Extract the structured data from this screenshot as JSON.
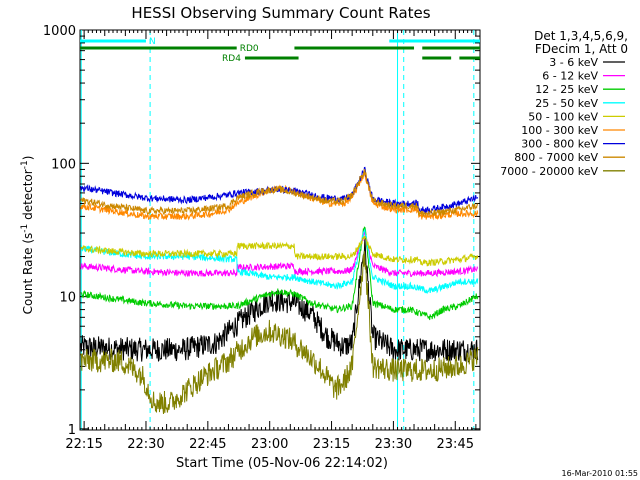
{
  "chart_data": {
    "type": "line",
    "title": "HESSI Observing Summary Count Rates",
    "xlabel": "Start Time (05-Nov-06 22:14:02)",
    "ylabel": "Count Rate (s",
    "ylabel_sup1": "-1",
    "ylabel_mid": " detector",
    "ylabel_sup2": "-1",
    "ylabel_end": ")",
    "yscale": "log",
    "ylim": [
      1,
      1000
    ],
    "xlim_minutes": [
      0,
      97
    ],
    "x_ticks": [
      {
        "label": "22:15",
        "min": 1
      },
      {
        "label": "22:30",
        "min": 16
      },
      {
        "label": "22:45",
        "min": 31
      },
      {
        "label": "23:00",
        "min": 46
      },
      {
        "label": "23:15",
        "min": 61
      },
      {
        "label": "23:30",
        "min": 76
      },
      {
        "label": "23:45",
        "min": 91
      }
    ],
    "y_ticks": [
      {
        "label": "1",
        "value": 1
      },
      {
        "label": "10",
        "value": 10
      },
      {
        "label": "100",
        "value": 100
      },
      {
        "label": "1000",
        "value": 1000
      }
    ],
    "legend_header": [
      "Det 1,3,4,5,6,9,",
      "FDecim 1, Att 0"
    ],
    "series": [
      {
        "name": "3 - 6 keV",
        "color": "#000000",
        "points": [
          [
            0,
            4.2
          ],
          [
            15,
            4
          ],
          [
            25,
            4
          ],
          [
            33,
            4.5
          ],
          [
            40,
            7
          ],
          [
            46,
            9.5
          ],
          [
            52,
            9
          ],
          [
            56,
            7.5
          ],
          [
            60,
            5
          ],
          [
            64,
            4.2
          ],
          [
            66,
            4.5
          ],
          [
            69,
            25
          ],
          [
            71,
            5
          ],
          [
            76,
            4
          ],
          [
            85,
            4
          ],
          [
            92,
            4
          ],
          [
            96,
            4
          ]
        ]
      },
      {
        "name": "6 - 12 keV",
        "color": "#ff00ff",
        "points": [
          [
            0,
            17
          ],
          [
            15,
            15.5
          ],
          [
            26,
            15
          ],
          [
            38,
            15
          ],
          [
            38.1,
            16.5
          ],
          [
            52,
            17
          ],
          [
            52.1,
            15.5
          ],
          [
            64,
            15.5
          ],
          [
            66,
            16
          ],
          [
            69,
            30
          ],
          [
            71,
            17
          ],
          [
            76,
            15
          ],
          [
            80,
            15
          ],
          [
            85,
            15
          ],
          [
            92,
            15.5
          ],
          [
            96,
            16
          ]
        ]
      },
      {
        "name": "12 - 25 keV",
        "color": "#00cc00",
        "points": [
          [
            0,
            10.5
          ],
          [
            15,
            9
          ],
          [
            26,
            8.5
          ],
          [
            38,
            8.5
          ],
          [
            44,
            10
          ],
          [
            48,
            11
          ],
          [
            52,
            10.5
          ],
          [
            56,
            9
          ],
          [
            62,
            8
          ],
          [
            66,
            8.5
          ],
          [
            69,
            35
          ],
          [
            71,
            9
          ],
          [
            76,
            8
          ],
          [
            80,
            8
          ],
          [
            85,
            7
          ],
          [
            88,
            8
          ],
          [
            92,
            8.5
          ],
          [
            96,
            10
          ]
        ]
      },
      {
        "name": "25 - 50 keV",
        "color": "#00ffff",
        "points": [
          [
            0,
            23
          ],
          [
            15,
            20
          ],
          [
            26,
            20
          ],
          [
            38,
            19
          ],
          [
            38.1,
            15.5
          ],
          [
            46,
            14
          ],
          [
            52,
            14
          ],
          [
            56,
            13
          ],
          [
            62,
            12
          ],
          [
            66,
            13
          ],
          [
            69,
            32
          ],
          [
            71,
            14
          ],
          [
            76,
            12
          ],
          [
            80,
            12
          ],
          [
            85,
            11
          ],
          [
            92,
            13
          ],
          [
            96,
            13
          ]
        ]
      },
      {
        "name": "50 - 100 keV",
        "color": "#cccc00",
        "points": [
          [
            0,
            23
          ],
          [
            15,
            21
          ],
          [
            26,
            21
          ],
          [
            38,
            21
          ],
          [
            38.1,
            24
          ],
          [
            52,
            24
          ],
          [
            52.1,
            20
          ],
          [
            64,
            20
          ],
          [
            66,
            20
          ],
          [
            69,
            28
          ],
          [
            71,
            21
          ],
          [
            76,
            19
          ],
          [
            80,
            19
          ],
          [
            82,
            19
          ],
          [
            82.1,
            18
          ],
          [
            85,
            18
          ],
          [
            92,
            19
          ],
          [
            96,
            20
          ]
        ]
      },
      {
        "name": "100 - 300 keV",
        "color": "#ff8800",
        "points": [
          [
            0,
            48
          ],
          [
            8,
            44
          ],
          [
            16,
            40
          ],
          [
            26,
            40
          ],
          [
            32,
            42
          ],
          [
            36,
            45
          ],
          [
            38,
            50
          ],
          [
            44,
            60
          ],
          [
            48,
            65
          ],
          [
            52,
            62
          ],
          [
            56,
            55
          ],
          [
            60,
            50
          ],
          [
            64,
            50
          ],
          [
            66,
            55
          ],
          [
            69,
            85
          ],
          [
            71,
            50
          ],
          [
            76,
            45
          ],
          [
            80,
            45
          ],
          [
            82,
            45
          ],
          [
            82.1,
            40
          ],
          [
            85,
            40
          ],
          [
            92,
            42
          ],
          [
            96,
            42
          ]
        ]
      },
      {
        "name": "300 - 800 keV",
        "color": "#0000dd",
        "points": [
          [
            0,
            66
          ],
          [
            8,
            60
          ],
          [
            16,
            55
          ],
          [
            26,
            53
          ],
          [
            32,
            56
          ],
          [
            36,
            58
          ],
          [
            38,
            60
          ],
          [
            44,
            62
          ],
          [
            48,
            64
          ],
          [
            52,
            62
          ],
          [
            56,
            58
          ],
          [
            60,
            55
          ],
          [
            64,
            54
          ],
          [
            66,
            58
          ],
          [
            69,
            90
          ],
          [
            71,
            54
          ],
          [
            76,
            50
          ],
          [
            80,
            50
          ],
          [
            82,
            50
          ],
          [
            82.1,
            45
          ],
          [
            85,
            45
          ],
          [
            92,
            50
          ],
          [
            96,
            55
          ]
        ]
      },
      {
        "name": "800 - 7000 keV",
        "color": "#cc8800",
        "points": [
          [
            0,
            53
          ],
          [
            8,
            48
          ],
          [
            16,
            44
          ],
          [
            26,
            44
          ],
          [
            32,
            46
          ],
          [
            36,
            48
          ],
          [
            38,
            55
          ],
          [
            44,
            62
          ],
          [
            48,
            64
          ],
          [
            52,
            60
          ],
          [
            56,
            56
          ],
          [
            60,
            52
          ],
          [
            64,
            52
          ],
          [
            66,
            58
          ],
          [
            69,
            88
          ],
          [
            71,
            52
          ],
          [
            76,
            48
          ],
          [
            80,
            48
          ],
          [
            82,
            48
          ],
          [
            82.1,
            42
          ],
          [
            85,
            42
          ],
          [
            92,
            45
          ],
          [
            96,
            48
          ]
        ]
      },
      {
        "name": "7000 - 20000 keV",
        "color": "#808000",
        "points": [
          [
            0,
            3.3
          ],
          [
            10,
            3.3
          ],
          [
            15,
            2.6
          ],
          [
            18,
            1.6
          ],
          [
            22,
            1.6
          ],
          [
            26,
            2
          ],
          [
            30,
            2.5
          ],
          [
            36,
            3.3
          ],
          [
            42,
            5
          ],
          [
            46,
            5.5
          ],
          [
            50,
            5
          ],
          [
            54,
            4
          ],
          [
            58,
            3
          ],
          [
            62,
            2
          ],
          [
            64,
            2.3
          ],
          [
            66,
            3
          ],
          [
            69,
            22
          ],
          [
            71,
            3
          ],
          [
            76,
            2.8
          ],
          [
            80,
            2.8
          ],
          [
            85,
            2.8
          ],
          [
            92,
            3
          ],
          [
            96,
            3.5
          ]
        ]
      }
    ],
    "segments": [
      {
        "label": "N",
        "color": "#00ffff",
        "start": 0,
        "end": 16
      },
      {
        "label": "",
        "color": "#00ffff",
        "start": 75,
        "end": 97
      },
      {
        "label": "RD0",
        "color": "#008000",
        "start": 0,
        "end": 38
      },
      {
        "label": "",
        "color": "#008000",
        "start": 52,
        "end": 81
      },
      {
        "label": "",
        "color": "#008000",
        "start": 83,
        "end": 97
      },
      {
        "label": "RD4",
        "color": "#008000",
        "start": 40,
        "end": 53
      },
      {
        "label": "",
        "color": "#008000",
        "start": 83,
        "end": 90
      },
      {
        "label": "",
        "color": "#008000",
        "start": 92,
        "end": 97
      }
    ],
    "vertical_markers": [
      {
        "min": 0.3,
        "style": "solid",
        "color": "#00ffff"
      },
      {
        "min": 17,
        "style": "dashed",
        "color": "#00ffff"
      },
      {
        "min": 77,
        "style": "solid",
        "color": "#00ffff"
      },
      {
        "min": 78.5,
        "style": "dashed",
        "color": "#00ffff"
      },
      {
        "min": 95.5,
        "style": "dashed",
        "color": "#00ffff"
      }
    ],
    "footer_date": "16-Mar-2010 01:55"
  }
}
